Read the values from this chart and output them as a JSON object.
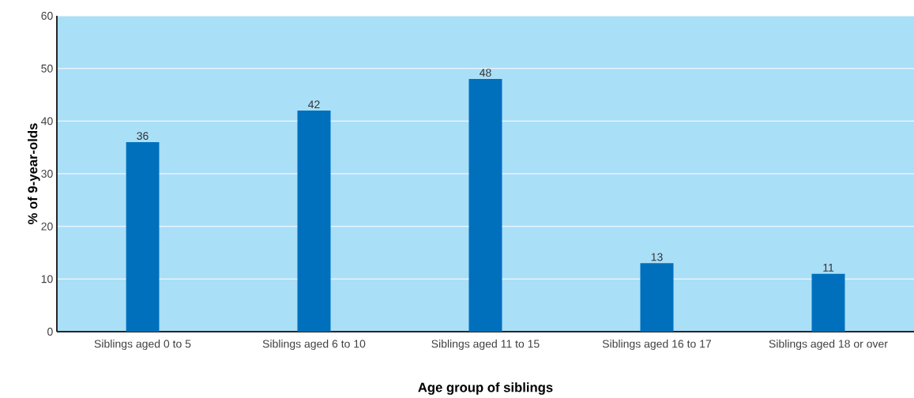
{
  "chart_data": {
    "type": "bar",
    "xlabel": "Age group of siblings",
    "ylabel": "% of 9-year-olds",
    "categories": [
      "Siblings aged 0 to 5",
      "Siblings aged 6 to 10",
      "Siblings aged 11 to 15",
      "Siblings aged 16 to 17",
      "Siblings aged 18 or over"
    ],
    "values": [
      36,
      42,
      48,
      13,
      11
    ],
    "data_labels": true,
    "color": "#0070bd",
    "ylim": [
      0,
      60
    ],
    "yticks": [
      0,
      10,
      20,
      30,
      40,
      50,
      60
    ],
    "grid": "y"
  }
}
